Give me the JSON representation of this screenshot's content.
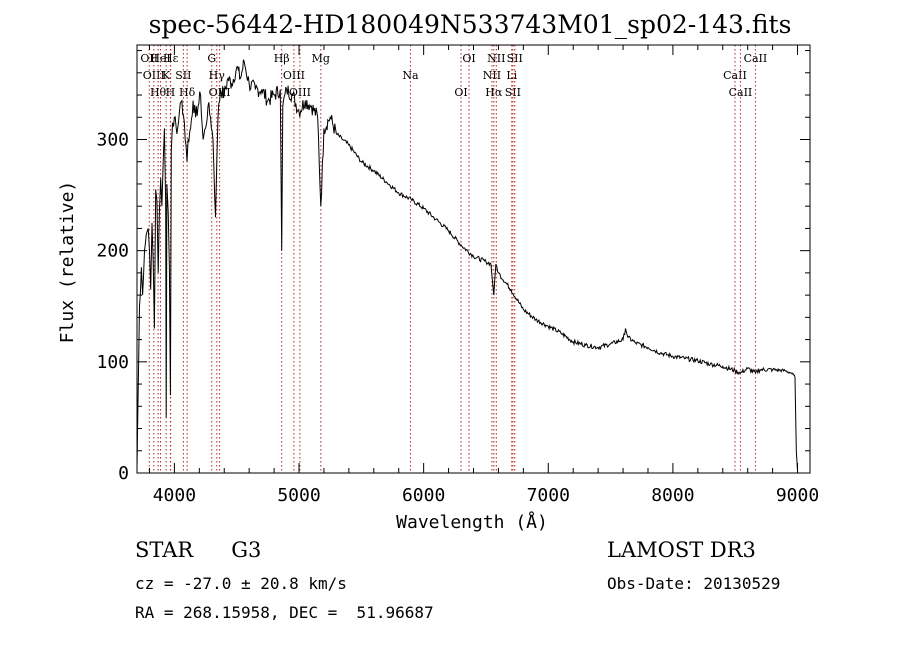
{
  "chart_data": {
    "type": "line",
    "title": "spec-56442-HD180049N533743M01_sp02-143.fits",
    "xlabel": "Wavelength (Å)",
    "ylabel": "Flux (relative)",
    "xlim": [
      3700,
      9100
    ],
    "ylim": [
      0,
      385
    ],
    "x_ticks": [
      4000,
      5000,
      6000,
      7000,
      8000,
      9000
    ],
    "y_ticks": [
      0,
      100,
      200,
      300
    ],
    "series": [
      {
        "name": "flux",
        "x": [
          3700,
          3720,
          3735,
          3745,
          3760,
          3775,
          3790,
          3800,
          3810,
          3820,
          3830,
          3840,
          3850,
          3860,
          3870,
          3880,
          3890,
          3900,
          3910,
          3920,
          3930,
          3934,
          3940,
          3950,
          3960,
          3968,
          3975,
          3985,
          4000,
          4020,
          4040,
          4060,
          4080,
          4101,
          4110,
          4130,
          4150,
          4170,
          4190,
          4210,
          4230,
          4250,
          4270,
          4290,
          4310,
          4330,
          4340,
          4350,
          4370,
          4400,
          4430,
          4460,
          4500,
          4530,
          4560,
          4600,
          4650,
          4700,
          4750,
          4800,
          4850,
          4861,
          4870,
          4900,
          4950,
          5000,
          5050,
          5100,
          5150,
          5175,
          5200,
          5250,
          5300,
          5350,
          5400,
          5500,
          5600,
          5700,
          5800,
          5900,
          6000,
          6100,
          6200,
          6300,
          6400,
          6500,
          6540,
          6563,
          6580,
          6600,
          6700,
          6800,
          6900,
          7000,
          7100,
          7200,
          7300,
          7400,
          7500,
          7600,
          7620,
          7640,
          7700,
          7800,
          7900,
          8000,
          8100,
          8200,
          8300,
          8400,
          8498,
          8542,
          8600,
          8662,
          8700,
          8800,
          8900,
          8950,
          8980,
          8990,
          9000
        ],
        "y": [
          5,
          150,
          185,
          160,
          200,
          215,
          220,
          200,
          165,
          225,
          190,
          130,
          255,
          245,
          180,
          235,
          265,
          240,
          280,
          310,
          240,
          50,
          260,
          235,
          185,
          70,
          290,
          315,
          320,
          305,
          325,
          335,
          315,
          280,
          300,
          310,
          335,
          320,
          330,
          340,
          300,
          310,
          330,
          320,
          300,
          230,
          280,
          320,
          345,
          340,
          355,
          350,
          365,
          355,
          370,
          350,
          345,
          345,
          335,
          340,
          345,
          200,
          330,
          345,
          340,
          325,
          335,
          330,
          320,
          240,
          310,
          320,
          305,
          300,
          295,
          280,
          272,
          262,
          252,
          246,
          238,
          228,
          218,
          205,
          195,
          190,
          188,
          160,
          188,
          180,
          165,
          147,
          138,
          132,
          126,
          118,
          115,
          113,
          116,
          120,
          130,
          122,
          117,
          113,
          108,
          105,
          103,
          101,
          98,
          96,
          92,
          90,
          94,
          90,
          93,
          93,
          92,
          90,
          86,
          20,
          2
        ]
      }
    ],
    "line_markers": [
      {
        "wavelength": 3798,
        "label": "OII"
      },
      {
        "wavelength": 3835,
        "label": "OIII"
      },
      {
        "wavelength": 3869,
        "label": "Hθ"
      },
      {
        "wavelength": 3889,
        "label": "HeI"
      },
      {
        "wavelength": 3934,
        "label": "K"
      },
      {
        "wavelength": 3968,
        "label": "H"
      },
      {
        "wavelength": 3970,
        "label": "Hε"
      },
      {
        "wavelength": 4072,
        "label": "SII"
      },
      {
        "wavelength": 4102,
        "label": "Hδ"
      },
      {
        "wavelength": 4300,
        "label": "G"
      },
      {
        "wavelength": 4340,
        "label": "Hγ"
      },
      {
        "wavelength": 4363,
        "label": "OIII"
      },
      {
        "wavelength": 4861,
        "label": "Hβ"
      },
      {
        "wavelength": 4959,
        "label": "OIII"
      },
      {
        "wavelength": 5007,
        "label": "OIII"
      },
      {
        "wavelength": 5175,
        "label": "Mg"
      },
      {
        "wavelength": 5894,
        "label": "Na"
      },
      {
        "wavelength": 6300,
        "label": "OI"
      },
      {
        "wavelength": 6364,
        "label": "OI"
      },
      {
        "wavelength": 6548,
        "label": "NII"
      },
      {
        "wavelength": 6563,
        "label": "Hα"
      },
      {
        "wavelength": 6583,
        "label": "NII"
      },
      {
        "wavelength": 6707,
        "label": "Li"
      },
      {
        "wavelength": 6716,
        "label": "SII"
      },
      {
        "wavelength": 6731,
        "label": "SII"
      },
      {
        "wavelength": 8498,
        "label": "CaII"
      },
      {
        "wavelength": 8542,
        "label": "CaII"
      },
      {
        "wavelength": 8662,
        "label": "CaII"
      }
    ],
    "marker_color": "#b22222",
    "line_color": "#000000"
  },
  "info": {
    "object_type": "STAR",
    "subclass": "G3",
    "survey": "LAMOST DR3",
    "cz_text": "cz = -27.0 ± 20.8 km/s",
    "obs_date_text": "Obs-Date: 20130529",
    "radec_text": "RA = 268.15958, DEC =  51.96687"
  }
}
